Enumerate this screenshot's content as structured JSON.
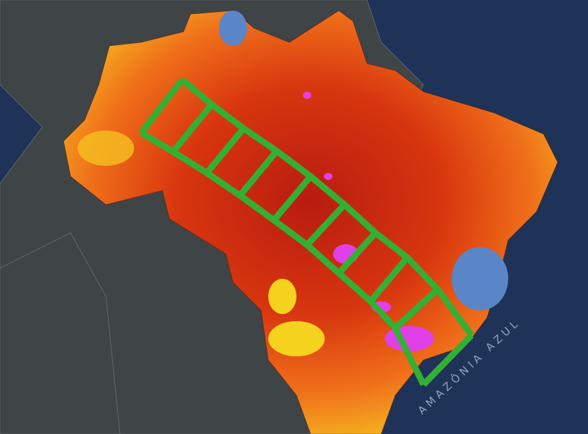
{
  "map": {
    "ocean_label": "AMAZÔNIA AZUL",
    "colors": {
      "ocean": "#1e3357",
      "land_outside": "#3f4446",
      "heat_high": "#c8200f",
      "heat_mid": "#f06a1a",
      "heat_low": "#f5d21e",
      "cool": "#5a86c8",
      "extreme": "#e040e8",
      "corridor": "#33b033",
      "label": "#8fa3c0"
    }
  }
}
